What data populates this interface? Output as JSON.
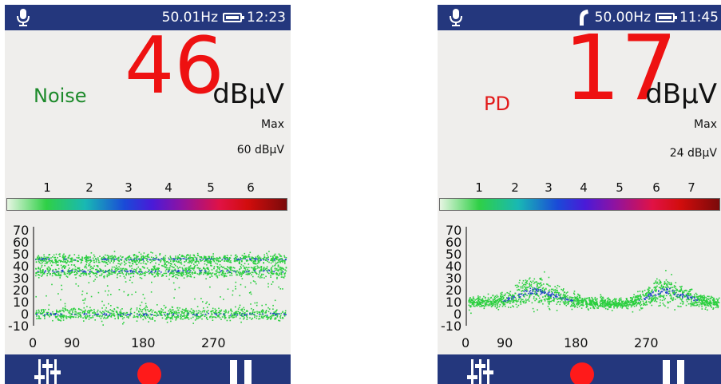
{
  "colors": {
    "bar": "#24377d",
    "panel": "#efeeec",
    "noise_label": "#1d8a2b",
    "pd_label": "#e21a1a",
    "reading": "#ee1111",
    "record": "#ff1a1a",
    "trace_green": "#2bcf3f",
    "trace_blue": "#2146c8"
  },
  "screens": [
    {
      "status": {
        "frequency": "50.01Hz",
        "time": "12:23",
        "icons": [
          "microphone-icon",
          "battery-icon"
        ]
      },
      "mode_label": "Noise",
      "reading": "46",
      "unit": "dBµV",
      "max_label": "Max",
      "max_value": "60 dBµV",
      "colorbar_labels": [
        "1",
        "2",
        "3",
        "4",
        "5",
        "6"
      ],
      "chart_data": {
        "type": "heatmap",
        "x_ticks": [
          "0",
          "90",
          "180",
          "270"
        ],
        "y_ticks": [
          "70",
          "60",
          "50",
          "40",
          "30",
          "20",
          "10",
          "0",
          "-10"
        ],
        "xlim": [
          0,
          360
        ],
        "ylim": [
          -10,
          70
        ],
        "bands": [
          {
            "y_center": 46,
            "spread": 2,
            "density": "high"
          },
          {
            "y_center": 36,
            "spread": 2.5,
            "density": "high"
          },
          {
            "y_center": 0,
            "spread": 2.5,
            "density": "high"
          }
        ],
        "grid": false
      },
      "buttons": [
        "settings-icon",
        "record-icon",
        "pause-icon"
      ]
    },
    {
      "status": {
        "frequency": "50.00Hz",
        "time": "11:45",
        "icons": [
          "microphone-icon",
          "handset-icon",
          "battery-icon"
        ]
      },
      "mode_label": "PD",
      "reading": "17",
      "unit": "dBµV",
      "max_label": "Max",
      "max_value": "24 dBµV",
      "colorbar_labels": [
        "1",
        "2",
        "3",
        "4",
        "5",
        "6",
        "7"
      ],
      "chart_data": {
        "type": "heatmap",
        "x_ticks": [
          "0",
          "90",
          "180",
          "270"
        ],
        "y_ticks": [
          "70",
          "60",
          "50",
          "40",
          "30",
          "20",
          "10",
          "0",
          "-10"
        ],
        "xlim": [
          0,
          360
        ],
        "ylim": [
          -10,
          70
        ],
        "trace": [
          [
            0,
            10
          ],
          [
            30,
            10
          ],
          [
            60,
            13
          ],
          [
            80,
            18
          ],
          [
            90,
            20
          ],
          [
            110,
            18
          ],
          [
            140,
            13
          ],
          [
            170,
            10
          ],
          [
            200,
            9
          ],
          [
            230,
            9
          ],
          [
            250,
            13
          ],
          [
            270,
            18
          ],
          [
            285,
            20
          ],
          [
            305,
            16
          ],
          [
            330,
            12
          ],
          [
            360,
            9
          ]
        ],
        "grid": false
      },
      "buttons": [
        "settings-icon",
        "record-icon",
        "pause-icon"
      ]
    }
  ]
}
